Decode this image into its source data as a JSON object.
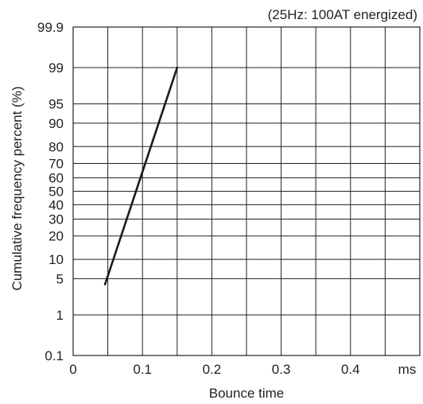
{
  "chart_data": {
    "type": "line",
    "annotation": "(25Hz: 100AT energized)",
    "xlabel": "Bounce time",
    "ylabel": "Cumulative frequency percent (%)",
    "x_unit": "ms",
    "xlim": [
      0,
      0.5
    ],
    "x_ticks": [
      "0",
      "0.1",
      "0.2",
      "0.3",
      "0.4"
    ],
    "y_scale": "probability",
    "y_ticks": [
      "0.1",
      "1",
      "5",
      "10",
      "20",
      "30",
      "40",
      "50",
      "60",
      "70",
      "80",
      "90",
      "95",
      "99",
      "99.9"
    ],
    "grid": true,
    "series": [
      {
        "x": [
          0.046,
          0.15
        ],
        "y": [
          4,
          99
        ]
      }
    ],
    "colors": {
      "line": "#1a1a1a",
      "grid": "#222222",
      "text": "#222222"
    }
  }
}
